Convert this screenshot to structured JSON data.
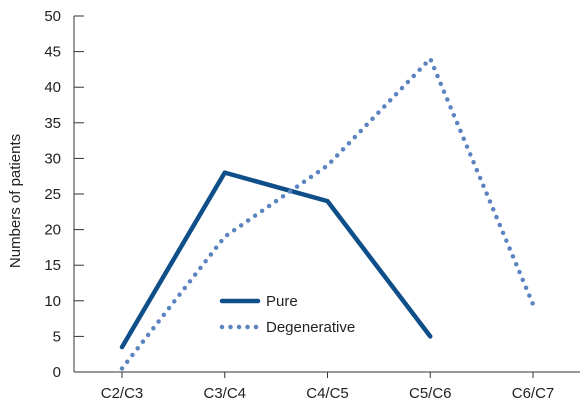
{
  "chart_data": {
    "type": "line",
    "categories": [
      "C2/C3",
      "C3/C4",
      "C4/C5",
      "C5/C6",
      "C6/C7"
    ],
    "ylabel": "Numbers of patients",
    "xlabel": "",
    "ylim": [
      0,
      50
    ],
    "yticks": [
      0,
      5,
      10,
      15,
      20,
      25,
      30,
      35,
      40,
      45,
      50
    ],
    "grid": false,
    "legend_position": "center",
    "series": [
      {
        "name": "Pure",
        "values": [
          3.5,
          28,
          24,
          5,
          null
        ],
        "style": "solid",
        "color": "#0e4f8a"
      },
      {
        "name": "Degenerative",
        "values": [
          0.5,
          19,
          29,
          44,
          9.5
        ],
        "style": "dotted",
        "color": "#5b83c0"
      }
    ]
  }
}
